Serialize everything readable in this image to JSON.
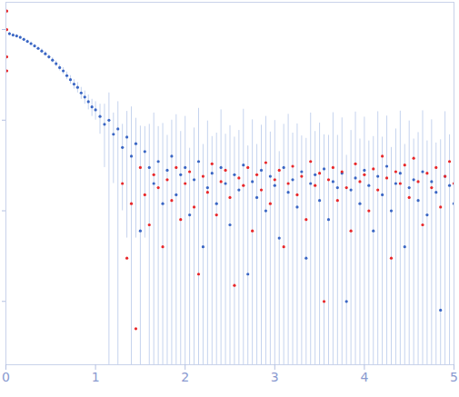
{
  "chart_data": {
    "type": "scatter",
    "log": "y",
    "grid": false,
    "tick_labels": "x",
    "xlim": [
      0,
      5
    ],
    "xticks": [
      0,
      1,
      2,
      3,
      4,
      5
    ],
    "ylim": [
      0.0002,
      2
    ],
    "yticks": [
      0.001,
      0.01,
      0.1,
      1
    ],
    "series": [
      {
        "color": "#3a66c4",
        "x": [
          0.04,
          0.08,
          0.12,
          0.16,
          0.2,
          0.24,
          0.28,
          0.32,
          0.36,
          0.4,
          0.44,
          0.48,
          0.52,
          0.56,
          0.6,
          0.64,
          0.68,
          0.72,
          0.76,
          0.8,
          0.84,
          0.88,
          0.92,
          0.96,
          1.0,
          1.05,
          1.1,
          1.15,
          1.2,
          1.25,
          1.3,
          1.35,
          1.4,
          1.45,
          1.5,
          1.55,
          1.6,
          1.65,
          1.7,
          1.75,
          1.8,
          1.85,
          1.9,
          1.95,
          2.0,
          2.05,
          2.1,
          2.15,
          2.2,
          2.25,
          2.3,
          2.35,
          2.4,
          2.45,
          2.5,
          2.55,
          2.6,
          2.65,
          2.7,
          2.75,
          2.8,
          2.85,
          2.9,
          2.95,
          3.0,
          3.05,
          3.1,
          3.15,
          3.2,
          3.25,
          3.3,
          3.35,
          3.4,
          3.45,
          3.5,
          3.55,
          3.6,
          3.65,
          3.7,
          3.75,
          3.8,
          3.85,
          3.9,
          3.95,
          4.0,
          4.05,
          4.1,
          4.15,
          4.2,
          4.25,
          4.3,
          4.35,
          4.4,
          4.45,
          4.5,
          4.55,
          4.6,
          4.65,
          4.7,
          4.75,
          4.8,
          4.85,
          4.9,
          4.95,
          5.0
        ],
        "values": [
          0.9,
          0.87,
          0.85,
          0.82,
          0.78,
          0.74,
          0.7,
          0.66,
          0.62,
          0.58,
          0.54,
          0.5,
          0.46,
          0.42,
          0.38,
          0.35,
          0.31,
          0.28,
          0.25,
          0.23,
          0.2,
          0.18,
          0.16,
          0.14,
          0.13,
          0.11,
          0.09,
          0.1,
          0.07,
          0.08,
          0.05,
          0.065,
          0.04,
          0.055,
          0.006,
          0.045,
          0.03,
          0.02,
          0.035,
          0.012,
          0.028,
          0.04,
          0.015,
          0.025,
          0.03,
          0.009,
          0.022,
          0.035,
          0.004,
          0.018,
          0.026,
          0.012,
          0.03,
          0.02,
          0.007,
          0.025,
          0.017,
          0.032,
          0.002,
          0.021,
          0.014,
          0.028,
          0.01,
          0.024,
          0.019,
          0.005,
          0.03,
          0.016,
          0.022,
          0.011,
          0.027,
          0.003,
          0.02,
          0.025,
          0.013,
          0.029,
          0.008,
          0.021,
          0.018,
          0.026,
          0.001,
          0.017,
          0.023,
          0.012,
          0.028,
          0.019,
          0.006,
          0.024,
          0.015,
          0.031,
          0.01,
          0.02,
          0.026,
          0.004,
          0.018,
          0.022,
          0.013,
          0.027,
          0.009,
          0.021,
          0.016,
          0.0008,
          0.024,
          0.019,
          0.012
        ],
        "errors": [
          0.03,
          0.03,
          0.03,
          0.03,
          0.03,
          0.03,
          0.03,
          0.03,
          0.03,
          0.03,
          0.03,
          0.03,
          0.03,
          0.03,
          0.03,
          0.03,
          0.03,
          0.03,
          0.03,
          0.03,
          0.03,
          0.03,
          0.03,
          0.03,
          0.03,
          0.04,
          0.06,
          0.1,
          0.05,
          0.08,
          0.04,
          0.06,
          0.1,
          0.05,
          0.08,
          0.04,
          0.06,
          0.1,
          0.05,
          0.08,
          0.04,
          0.06,
          0.1,
          0.05,
          0.08,
          0.04,
          0.06,
          0.1,
          0.05,
          0.08,
          0.04,
          0.06,
          0.1,
          0.05,
          0.08,
          0.04,
          0.06,
          0.1,
          0.05,
          0.08,
          0.04,
          0.06,
          0.1,
          0.05,
          0.08,
          0.04,
          0.06,
          0.1,
          0.05,
          0.08,
          0.04,
          0.06,
          0.1,
          0.05,
          0.08,
          0.04,
          0.06,
          0.1,
          0.05,
          0.08,
          0.04,
          0.06,
          0.1,
          0.05,
          0.08,
          0.04,
          0.06,
          0.1,
          0.05,
          0.08,
          0.04,
          0.06,
          0.1,
          0.05,
          0.08,
          0.04,
          0.06,
          0.1,
          0.05,
          0.08,
          0.04,
          0.06,
          0.1,
          0.05,
          0.08
        ]
      },
      {
        "color": "#e8272a",
        "x": [
          0.01,
          0.01,
          0.01,
          0.01,
          1.3,
          1.35,
          1.4,
          1.45,
          1.5,
          1.55,
          1.6,
          1.65,
          1.7,
          1.75,
          1.8,
          1.85,
          1.9,
          1.95,
          2.0,
          2.05,
          2.1,
          2.15,
          2.2,
          2.25,
          2.3,
          2.35,
          2.4,
          2.45,
          2.5,
          2.55,
          2.6,
          2.65,
          2.7,
          2.75,
          2.8,
          2.85,
          2.9,
          2.95,
          3.0,
          3.05,
          3.1,
          3.15,
          3.2,
          3.25,
          3.3,
          3.35,
          3.4,
          3.45,
          3.5,
          3.55,
          3.6,
          3.65,
          3.7,
          3.75,
          3.8,
          3.85,
          3.9,
          3.95,
          4.0,
          4.05,
          4.1,
          4.15,
          4.2,
          4.25,
          4.3,
          4.35,
          4.4,
          4.45,
          4.5,
          4.55,
          4.6,
          4.65,
          4.7,
          4.75,
          4.8,
          4.85,
          4.9,
          4.95,
          5.0
        ],
        "values": [
          1.6,
          1.0,
          0.5,
          0.35,
          0.02,
          0.003,
          0.012,
          0.0005,
          0.03,
          0.015,
          0.007,
          0.025,
          0.018,
          0.004,
          0.022,
          0.013,
          0.03,
          0.008,
          0.02,
          0.027,
          0.011,
          0.002,
          0.024,
          0.016,
          0.033,
          0.009,
          0.021,
          0.028,
          0.014,
          0.0015,
          0.023,
          0.019,
          0.03,
          0.006,
          0.025,
          0.017,
          0.034,
          0.012,
          0.022,
          0.028,
          0.004,
          0.02,
          0.031,
          0.015,
          0.024,
          0.008,
          0.035,
          0.019,
          0.026,
          0.001,
          0.022,
          0.03,
          0.013,
          0.027,
          0.018,
          0.006,
          0.033,
          0.021,
          0.025,
          0.01,
          0.029,
          0.017,
          0.04,
          0.023,
          0.003,
          0.027,
          0.02,
          0.032,
          0.014,
          0.038,
          0.021,
          0.007,
          0.026,
          0.018,
          0.03,
          0.011,
          0.024,
          0.035,
          0.02
        ]
      }
    ]
  }
}
